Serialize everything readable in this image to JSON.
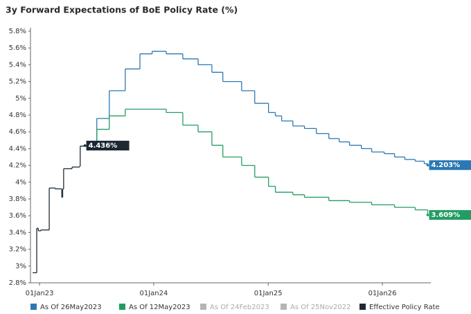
{
  "chart_data": {
    "type": "step-line",
    "title": "3y Forward Expectations of BoE Policy Rate (%)",
    "xlim": [
      "2022-12-03",
      "2026-06-05"
    ],
    "xticks": [
      {
        "value": "2023-01-01",
        "label": "01Jan23"
      },
      {
        "value": "2024-01-01",
        "label": "01Jan24"
      },
      {
        "value": "2025-01-01",
        "label": "01Jan25"
      },
      {
        "value": "2026-01-01",
        "label": "01Jan26"
      }
    ],
    "ylim": [
      2.8,
      5.8
    ],
    "yticks": [
      {
        "value": 2.8,
        "label": "2.8%"
      },
      {
        "value": 3.0,
        "label": "3%"
      },
      {
        "value": 3.2,
        "label": "3.2%"
      },
      {
        "value": 3.4,
        "label": "3.4%"
      },
      {
        "value": 3.6,
        "label": "3.6%"
      },
      {
        "value": 3.8,
        "label": "3.8%"
      },
      {
        "value": 4.0,
        "label": "4%"
      },
      {
        "value": 4.2,
        "label": "4.2%"
      },
      {
        "value": 4.4,
        "label": "4.4%"
      },
      {
        "value": 4.6,
        "label": "4.6%"
      },
      {
        "value": 4.8,
        "label": "4.8%"
      },
      {
        "value": 5.0,
        "label": "5%"
      },
      {
        "value": 5.2,
        "label": "5.2%"
      },
      {
        "value": 5.4,
        "label": "5.4%"
      },
      {
        "value": 5.6,
        "label": "5.6%"
      },
      {
        "value": 5.8,
        "label": "5.8%"
      }
    ],
    "grid": false,
    "series": [
      {
        "name": "As Of 26May2023",
        "color": "#2a78b4",
        "hidden": false,
        "end_label": "4.203%",
        "x": [
          "2023-05-26",
          "2023-07-03",
          "2023-08-12",
          "2023-10-02",
          "2023-11-18",
          "2023-12-27",
          "2024-02-10",
          "2024-04-03",
          "2024-05-22",
          "2024-07-05",
          "2024-08-09",
          "2024-10-08",
          "2024-11-19",
          "2025-01-02",
          "2025-01-24",
          "2025-02-13",
          "2025-03-21",
          "2025-04-27",
          "2025-06-04",
          "2025-07-14",
          "2025-08-16",
          "2025-09-18",
          "2025-10-26",
          "2025-11-28",
          "2026-01-07",
          "2026-02-09",
          "2026-03-14",
          "2026-04-16",
          "2026-05-15",
          "2026-05-26"
        ],
        "values": [
          4.44,
          4.76,
          5.09,
          5.35,
          5.53,
          5.56,
          5.53,
          5.47,
          5.4,
          5.31,
          5.2,
          5.09,
          4.94,
          4.83,
          4.79,
          4.73,
          4.67,
          4.64,
          4.58,
          4.52,
          4.48,
          4.44,
          4.4,
          4.36,
          4.34,
          4.3,
          4.27,
          4.25,
          4.22,
          4.203
        ]
      },
      {
        "name": "As Of 12May2023",
        "color": "#239c63",
        "hidden": false,
        "end_label": "3.609%",
        "x": [
          "2023-05-12",
          "2023-07-03",
          "2023-08-12",
          "2023-10-02",
          "2024-02-10",
          "2024-04-03",
          "2024-05-22",
          "2024-07-05",
          "2024-08-09",
          "2024-10-08",
          "2024-11-19",
          "2025-01-02",
          "2025-01-24",
          "2025-03-21",
          "2025-04-27",
          "2025-07-14",
          "2025-09-18",
          "2025-11-28",
          "2026-02-09",
          "2026-04-16",
          "2026-05-26"
        ],
        "values": [
          4.43,
          4.63,
          4.79,
          4.87,
          4.83,
          4.68,
          4.6,
          4.44,
          4.3,
          4.2,
          4.06,
          3.95,
          3.88,
          3.85,
          3.82,
          3.78,
          3.76,
          3.73,
          3.7,
          3.67,
          3.609
        ]
      },
      {
        "name": "As Of 24Feb2023",
        "color": "#b5b5b5",
        "hidden": true,
        "x": [],
        "values": []
      },
      {
        "name": "As Of 25Nov2022",
        "color": "#b5b5b5",
        "hidden": true,
        "x": [],
        "values": []
      },
      {
        "name": "Effective Policy Rate",
        "color": "#1d2833",
        "hidden": false,
        "end_label": "4.436%",
        "x": [
          "2022-12-10",
          "2022-12-23",
          "2022-12-28",
          "2023-01-05",
          "2023-02-01",
          "2023-02-20",
          "2023-03-11",
          "2023-03-13",
          "2023-03-16",
          "2023-03-19",
          "2023-04-15",
          "2023-05-09",
          "2023-05-11",
          "2023-05-26"
        ],
        "values": [
          2.92,
          3.45,
          3.42,
          3.43,
          3.93,
          3.92,
          3.92,
          3.82,
          3.92,
          4.16,
          4.18,
          4.19,
          4.43,
          4.436
        ]
      }
    ]
  }
}
